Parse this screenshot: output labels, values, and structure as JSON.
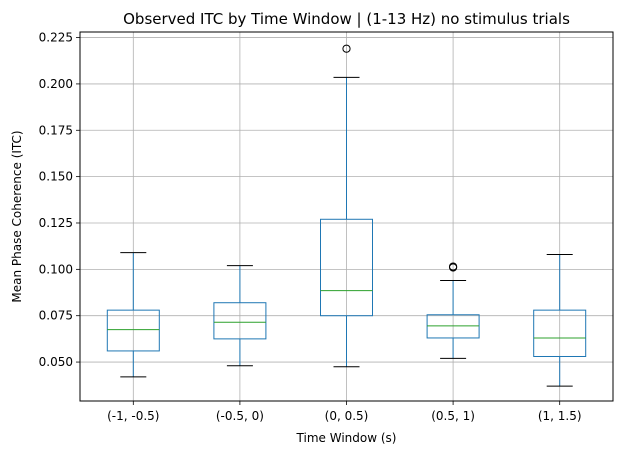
{
  "chart_data": {
    "type": "box",
    "title": "Observed ITC by Time Window | (1-13 Hz) no stimulus trials",
    "xlabel": "Time Window (s)",
    "ylabel": "Mean Phase Coherence (ITC)",
    "ylim": [
      0.029,
      0.228
    ],
    "yticks": [
      "0.050",
      "0.075",
      "0.100",
      "0.125",
      "0.150",
      "0.175",
      "0.200",
      "0.225"
    ],
    "ytick_values": [
      0.05,
      0.075,
      0.1,
      0.125,
      0.15,
      0.175,
      0.2,
      0.225
    ],
    "categories": [
      "(-1, -0.5)",
      "(-0.5, 0)",
      "(0, 0.5)",
      "(0.5, 1)",
      "(1, 1.5)"
    ],
    "grid": true,
    "boxes": [
      {
        "whisker_low": 0.042,
        "q1": 0.056,
        "median": 0.0675,
        "q3": 0.078,
        "whisker_high": 0.109,
        "outliers": []
      },
      {
        "whisker_low": 0.048,
        "q1": 0.0625,
        "median": 0.0715,
        "q3": 0.082,
        "whisker_high": 0.102,
        "outliers": []
      },
      {
        "whisker_low": 0.0475,
        "q1": 0.075,
        "median": 0.0885,
        "q3": 0.127,
        "whisker_high": 0.2035,
        "outliers": [
          0.219
        ]
      },
      {
        "whisker_low": 0.052,
        "q1": 0.063,
        "median": 0.0695,
        "q3": 0.0755,
        "whisker_high": 0.094,
        "outliers": [
          0.101,
          0.1015
        ]
      },
      {
        "whisker_low": 0.037,
        "q1": 0.053,
        "median": 0.063,
        "q3": 0.078,
        "whisker_high": 0.108,
        "outliers": []
      }
    ],
    "colors": {
      "box": "#1f77b4",
      "median": "#2ca02c",
      "whisker": "#1f77b4",
      "cap": "#000000",
      "grid": "#b0b0b0"
    }
  }
}
